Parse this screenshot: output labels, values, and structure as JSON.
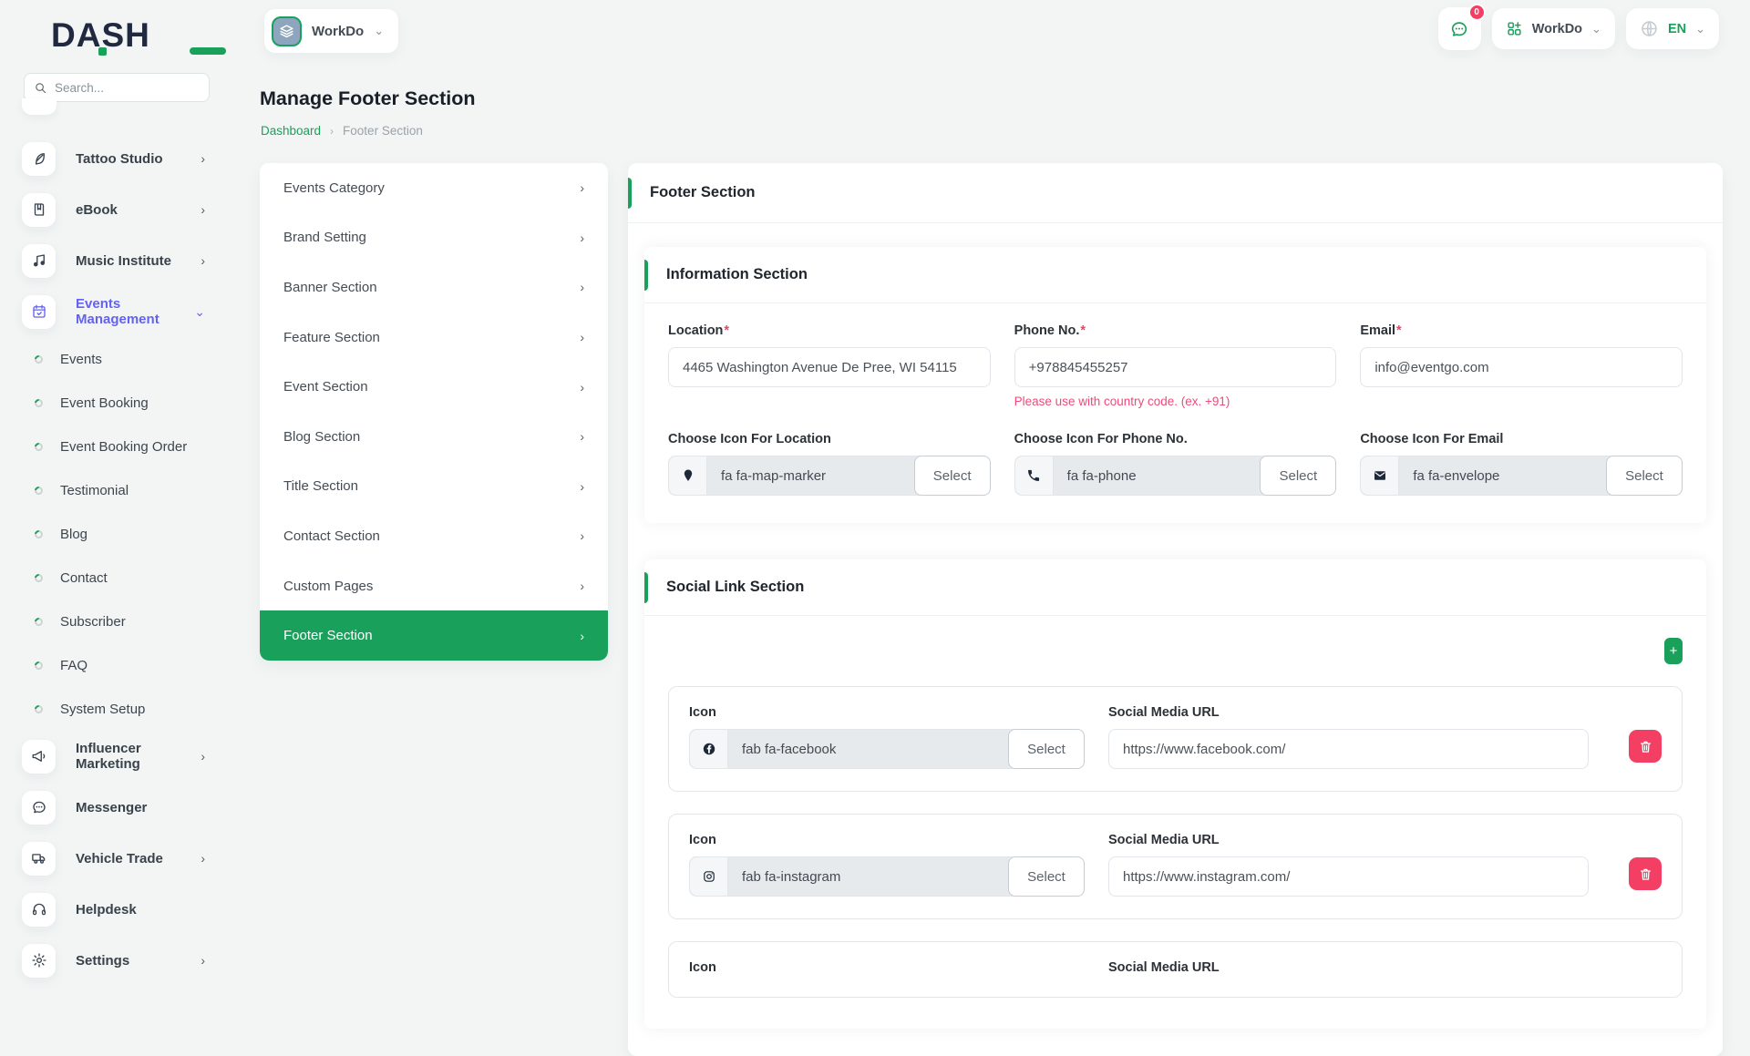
{
  "colors": {
    "green": "#19a05b",
    "purple": "#6462f0",
    "pink": "#f43f64",
    "background": "#f2f5f4"
  },
  "brand": {
    "name": "DASH"
  },
  "search": {
    "placeholder": "Search..."
  },
  "sidebar": {
    "items": [
      {
        "type": "main",
        "label": "Tattoo Studio",
        "icon": "feather-icon",
        "chevron": "right"
      },
      {
        "type": "main",
        "label": "eBook",
        "icon": "book-icon",
        "chevron": "right"
      },
      {
        "type": "main",
        "label": "Music Institute",
        "icon": "music-icon",
        "chevron": "right"
      },
      {
        "type": "main",
        "label": "Events Management",
        "icon": "calendar-icon",
        "chevron": "down",
        "active": true
      },
      {
        "type": "sub",
        "label": "Events"
      },
      {
        "type": "sub",
        "label": "Event Booking"
      },
      {
        "type": "sub",
        "label": "Event Booking Order"
      },
      {
        "type": "sub",
        "label": "Testimonial"
      },
      {
        "type": "sub",
        "label": "Blog"
      },
      {
        "type": "sub",
        "label": "Contact"
      },
      {
        "type": "sub",
        "label": "Subscriber"
      },
      {
        "type": "sub",
        "label": "FAQ"
      },
      {
        "type": "sub",
        "label": "System Setup"
      },
      {
        "type": "main",
        "label": "Influencer Marketing",
        "icon": "megaphone-icon",
        "chevron": "right"
      },
      {
        "type": "main",
        "label": "Messenger",
        "icon": "chat-icon",
        "chevron": "none"
      },
      {
        "type": "main",
        "label": "Vehicle Trade",
        "icon": "truck-icon",
        "chevron": "right"
      },
      {
        "type": "main",
        "label": "Helpdesk",
        "icon": "headset-icon",
        "chevron": "none"
      },
      {
        "type": "main",
        "label": "Settings",
        "icon": "gear-icon",
        "chevron": "right"
      }
    ]
  },
  "header": {
    "app_selector": {
      "label": "WorkDo",
      "icon": "layers-icon"
    },
    "messages_badge": "0",
    "workspace": {
      "label": "WorkDo",
      "icon": "grid-icon"
    },
    "language": {
      "label": "EN",
      "icon": "globe-icon"
    }
  },
  "page": {
    "title": "Manage Footer Section",
    "breadcrumb": [
      "Dashboard",
      "Footer Section"
    ]
  },
  "section_menu": {
    "items": [
      {
        "label": "Events Category"
      },
      {
        "label": "Brand Setting"
      },
      {
        "label": "Banner Section"
      },
      {
        "label": "Feature Section"
      },
      {
        "label": "Event Section"
      },
      {
        "label": "Blog Section"
      },
      {
        "label": "Title Section"
      },
      {
        "label": "Contact Section"
      },
      {
        "label": "Custom Pages"
      },
      {
        "label": "Footer Section",
        "active": true
      }
    ]
  },
  "main": {
    "card_title": "Footer Section",
    "information": {
      "title": "Information Section",
      "fields": [
        {
          "label": "Location",
          "required": "*",
          "value": "4465 Washington Avenue De Pree, WI 54115"
        },
        {
          "label": "Phone No.",
          "required": "*",
          "value": "+978845455257",
          "hint": "Please use with country code. (ex. +91)"
        },
        {
          "label": "Email",
          "required": "*",
          "value": "info@eventgo.com"
        }
      ],
      "icon_fields": [
        {
          "label": "Choose Icon For Location",
          "value": "fa fa-map-marker",
          "icon": "map-marker-icon"
        },
        {
          "label": "Choose Icon For Phone No.",
          "value": "fa fa-phone",
          "icon": "phone-icon"
        },
        {
          "label": "Choose Icon For Email",
          "value": "fa fa-envelope",
          "icon": "envelope-icon"
        }
      ],
      "select_label": "Select"
    },
    "social": {
      "title": "Social Link Section",
      "add_label": "+",
      "icon_label": "Icon",
      "url_label": "Social Media URL",
      "select_label": "Select",
      "rows": [
        {
          "icon": "facebook-icon",
          "icon_class": "fab fa-facebook",
          "url": "https://www.facebook.com/"
        },
        {
          "icon": "instagram-icon",
          "icon_class": "fab fa-instagram",
          "url": "https://www.instagram.com/"
        },
        {
          "partial": true
        }
      ]
    }
  }
}
